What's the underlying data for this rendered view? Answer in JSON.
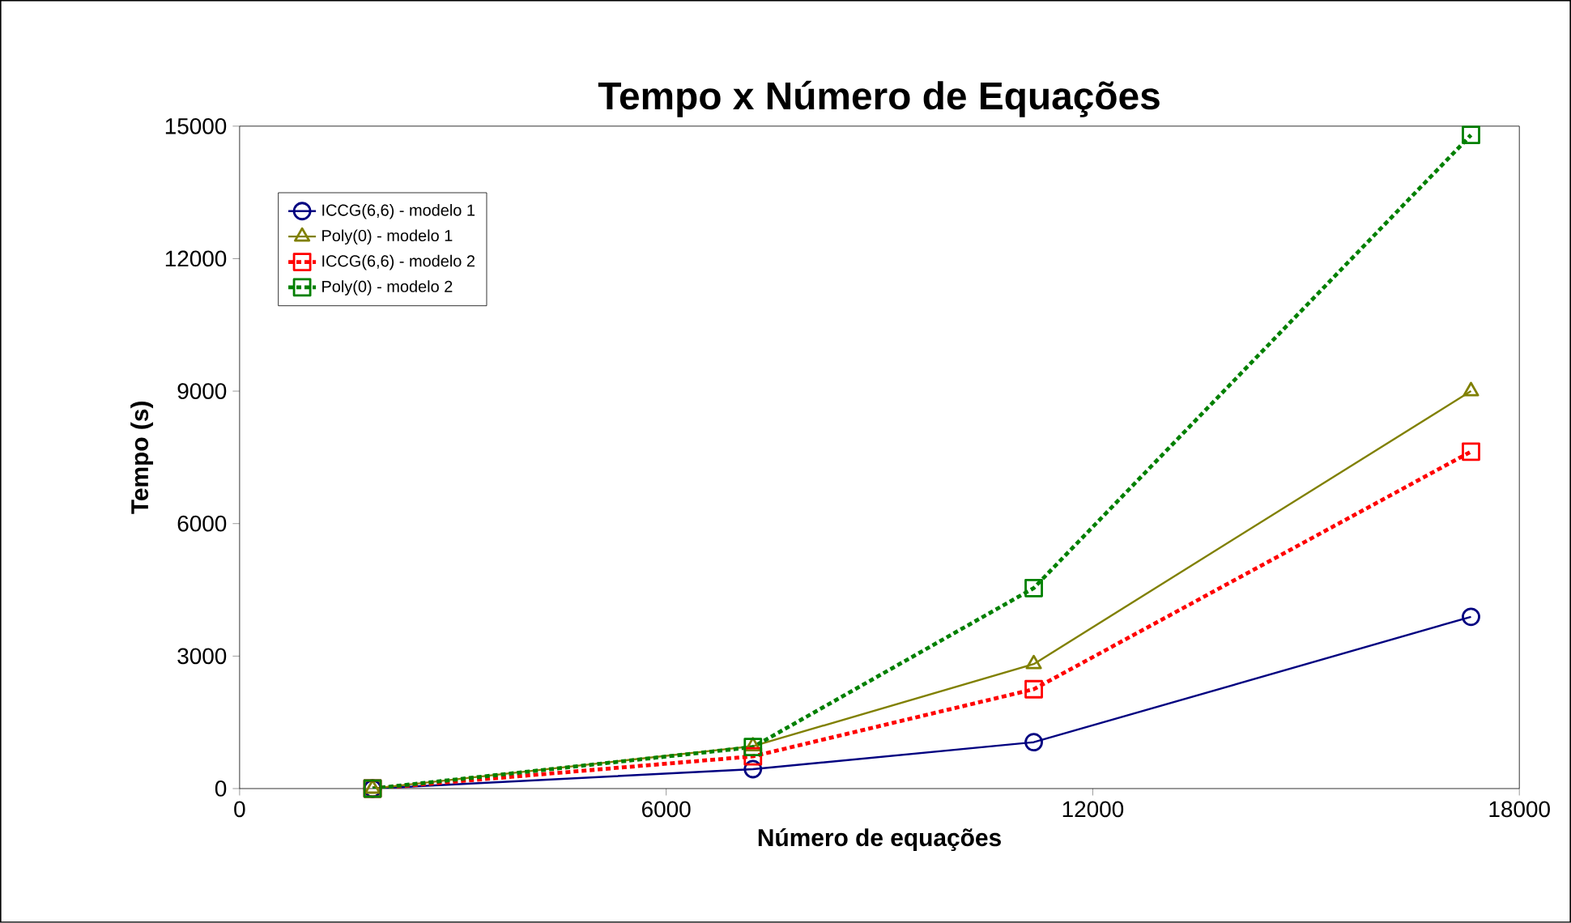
{
  "chart_data": {
    "type": "line",
    "title": "Tempo x Número de Equações",
    "xlabel": "Número de equações",
    "ylabel": "Tempo (s)",
    "x": [
      1870,
      7220,
      11170,
      17320
    ],
    "series": [
      {
        "name": "ICCG(6,6) - modelo 1",
        "color": "#000080",
        "values": [
          0,
          440,
          1050,
          3890
        ],
        "marker": "circle",
        "line_style": "solid"
      },
      {
        "name": "Poly(0) - modelo 1",
        "color": "#808000",
        "values": [
          0,
          960,
          2820,
          9000
        ],
        "marker": "triangle",
        "line_style": "solid"
      },
      {
        "name": "ICCG(6,6) - modelo 2",
        "color": "#ff0000",
        "values": [
          0,
          730,
          2250,
          7630
        ],
        "marker": "square",
        "line_style": "dotted"
      },
      {
        "name": "Poly(0) - modelo 2",
        "color": "#008000",
        "values": [
          0,
          940,
          4540,
          14800
        ],
        "marker": "square",
        "line_style": "dotted"
      }
    ],
    "xlim": [
      0,
      18000
    ],
    "ylim": [
      0,
      15000
    ],
    "xticks": [
      0,
      6000,
      12000,
      18000
    ],
    "yticks": [
      0,
      3000,
      6000,
      9000,
      12000,
      15000
    ],
    "grid": false,
    "legend": "top left"
  }
}
